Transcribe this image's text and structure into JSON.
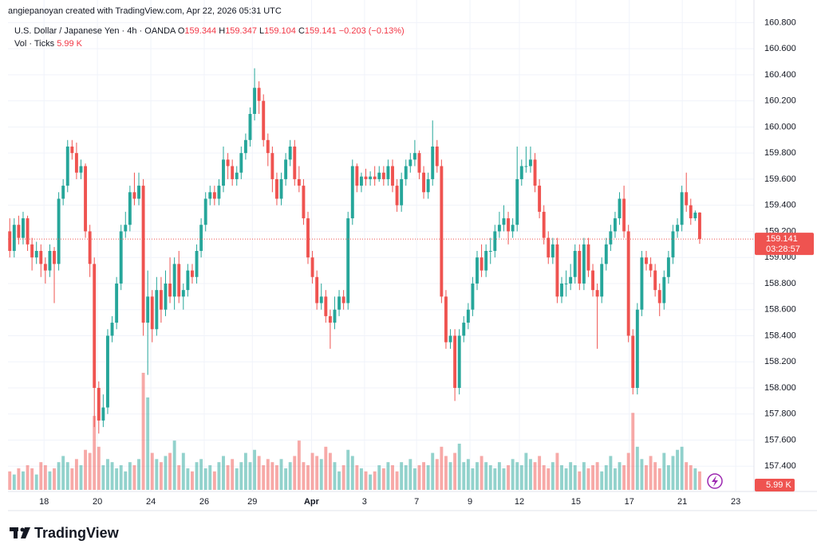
{
  "header": {
    "credit": "angiepanoyan created with TradingView.com, Apr 22, 2026 05:31 UTC",
    "symbol": "U.S. Dollar / Japanese Yen · 4h · OANDA",
    "labels": [
      "O",
      "H",
      "L",
      "C"
    ],
    "change": "−0.203 (−0.13%)",
    "volume_title": "Vol · Ticks",
    "countdown": "03:28:57",
    "logo": "TradingView"
  },
  "chart_data": {
    "type": "candlestick",
    "up_color": "#26a69a",
    "down_color": "#ef5350",
    "grid": true,
    "ylim": [
      157.2,
      160.9
    ],
    "xlim": [
      -0.4,
      167.2
    ],
    "yticks": [
      {
        "value": 157.4,
        "label": "157.400"
      },
      {
        "value": 157.6,
        "label": "157.600"
      },
      {
        "value": 157.8,
        "label": "157.800"
      },
      {
        "value": 158.0,
        "label": "158.000"
      },
      {
        "value": 158.2,
        "label": "158.200"
      },
      {
        "value": 158.4,
        "label": "158.400"
      },
      {
        "value": 158.6,
        "label": "158.600"
      },
      {
        "value": 158.8,
        "label": "158.800"
      },
      {
        "value": 159.0,
        "label": "159.000"
      },
      {
        "value": 159.2,
        "label": "159.200"
      },
      {
        "value": 159.4,
        "label": "159.400"
      },
      {
        "value": 159.6,
        "label": "159.600"
      },
      {
        "value": 159.8,
        "label": "159.800"
      },
      {
        "value": 160.0,
        "label": "160.000"
      },
      {
        "value": 160.2,
        "label": "160.200"
      },
      {
        "value": 160.4,
        "label": "160.400"
      },
      {
        "value": 160.6,
        "label": "160.600"
      },
      {
        "value": 160.8,
        "label": "160.800"
      }
    ],
    "xticks": [
      {
        "value": 7.7,
        "label": "18"
      },
      {
        "value": 19.7,
        "label": "20"
      },
      {
        "value": 31.7,
        "label": "24"
      },
      {
        "value": 43.7,
        "label": "26"
      },
      {
        "value": 54.5,
        "label": "29"
      },
      {
        "value": 67.8,
        "label": "Apr"
      },
      {
        "value": 79.7,
        "label": "3"
      },
      {
        "value": 91.4,
        "label": "7"
      },
      {
        "value": 103.4,
        "label": "9"
      },
      {
        "value": 114.5,
        "label": "12"
      },
      {
        "value": 127.2,
        "label": "15"
      },
      {
        "value": 139.2,
        "label": "17"
      },
      {
        "value": 151.1,
        "label": "21"
      },
      {
        "value": 163.1,
        "label": "23"
      }
    ],
    "volume_label": "5.99 K",
    "candles": [
      [
        159.2,
        159.3,
        159.0,
        159.05,
        6
      ],
      [
        159.05,
        159.3,
        159.0,
        159.25,
        5
      ],
      [
        159.25,
        159.32,
        159.1,
        159.15,
        7
      ],
      [
        159.15,
        159.35,
        159.1,
        159.3,
        6
      ],
      [
        159.3,
        159.32,
        159.05,
        159.1,
        8
      ],
      [
        159.1,
        159.15,
        158.9,
        159.0,
        7
      ],
      [
        159.0,
        159.12,
        158.95,
        159.05,
        5
      ],
      [
        159.05,
        159.1,
        158.85,
        158.95,
        9
      ],
      [
        158.95,
        159.0,
        158.8,
        158.9,
        8
      ],
      [
        158.9,
        159.1,
        158.85,
        159.05,
        6
      ],
      [
        159.05,
        159.08,
        158.65,
        158.95,
        7
      ],
      [
        158.95,
        159.5,
        158.9,
        159.45,
        9
      ],
      [
        159.45,
        159.6,
        159.4,
        159.55,
        11
      ],
      [
        159.55,
        159.9,
        159.5,
        159.85,
        9
      ],
      [
        159.85,
        159.9,
        159.75,
        159.8,
        7
      ],
      [
        159.8,
        159.88,
        159.6,
        159.65,
        10
      ],
      [
        159.65,
        159.75,
        159.6,
        159.7,
        8
      ],
      [
        159.7,
        159.72,
        159.15,
        159.2,
        13
      ],
      [
        159.2,
        159.25,
        158.85,
        158.95,
        12
      ],
      [
        158.95,
        159.0,
        157.7,
        158.0,
        24
      ],
      [
        158.0,
        158.05,
        157.65,
        157.75,
        14
      ],
      [
        157.75,
        157.95,
        157.7,
        157.85,
        8
      ],
      [
        157.85,
        158.45,
        157.8,
        158.4,
        10
      ],
      [
        158.4,
        158.55,
        158.35,
        158.5,
        9
      ],
      [
        158.5,
        158.85,
        158.45,
        158.8,
        7
      ],
      [
        158.8,
        159.25,
        158.75,
        159.2,
        8
      ],
      [
        159.2,
        159.35,
        159.15,
        159.25,
        6
      ],
      [
        159.25,
        159.55,
        159.2,
        159.5,
        9
      ],
      [
        159.5,
        159.65,
        159.4,
        159.45,
        8
      ],
      [
        159.45,
        159.65,
        159.4,
        159.55,
        10
      ],
      [
        159.55,
        159.6,
        158.4,
        158.5,
        38
      ],
      [
        158.5,
        158.9,
        158.1,
        158.7,
        30
      ],
      [
        158.7,
        158.75,
        158.35,
        158.45,
        12
      ],
      [
        158.45,
        158.85,
        158.4,
        158.75,
        10
      ],
      [
        158.75,
        158.85,
        158.5,
        158.6,
        9
      ],
      [
        158.6,
        158.9,
        158.55,
        158.8,
        11
      ],
      [
        158.8,
        159.0,
        158.65,
        158.7,
        12
      ],
      [
        158.7,
        159.0,
        158.6,
        158.95,
        16
      ],
      [
        158.95,
        159.05,
        158.65,
        158.7,
        8
      ],
      [
        158.7,
        158.8,
        158.6,
        158.75,
        12
      ],
      [
        158.75,
        158.95,
        158.7,
        158.9,
        7
      ],
      [
        158.9,
        158.95,
        158.8,
        158.85,
        6
      ],
      [
        158.85,
        159.1,
        158.8,
        159.05,
        9
      ],
      [
        159.05,
        159.3,
        159.0,
        159.25,
        10
      ],
      [
        159.25,
        159.5,
        159.2,
        159.45,
        7
      ],
      [
        159.45,
        159.55,
        159.4,
        159.5,
        8
      ],
      [
        159.5,
        159.55,
        159.4,
        159.45,
        6
      ],
      [
        159.45,
        159.6,
        159.4,
        159.55,
        9
      ],
      [
        159.55,
        159.85,
        159.5,
        159.75,
        11
      ],
      [
        159.75,
        159.8,
        159.6,
        159.7,
        8
      ],
      [
        159.7,
        159.75,
        159.55,
        159.6,
        10
      ],
      [
        159.6,
        159.7,
        159.55,
        159.65,
        7
      ],
      [
        159.65,
        159.85,
        159.6,
        159.8,
        9
      ],
      [
        159.8,
        159.95,
        159.75,
        159.9,
        12
      ],
      [
        159.9,
        160.15,
        159.85,
        160.1,
        9
      ],
      [
        160.1,
        160.45,
        160.05,
        160.3,
        13
      ],
      [
        160.3,
        160.35,
        160.1,
        160.2,
        11
      ],
      [
        160.2,
        160.25,
        159.85,
        159.9,
        8
      ],
      [
        159.9,
        159.95,
        159.7,
        159.8,
        10
      ],
      [
        159.8,
        159.85,
        159.5,
        159.6,
        9
      ],
      [
        159.6,
        159.65,
        159.4,
        159.45,
        8
      ],
      [
        159.45,
        159.65,
        159.4,
        159.6,
        10
      ],
      [
        159.6,
        159.8,
        159.55,
        159.75,
        7
      ],
      [
        159.75,
        159.9,
        159.7,
        159.85,
        9
      ],
      [
        159.85,
        159.9,
        159.55,
        159.6,
        11
      ],
      [
        159.6,
        159.7,
        159.5,
        159.55,
        16
      ],
      [
        159.55,
        159.6,
        159.25,
        159.3,
        9
      ],
      [
        159.3,
        159.35,
        158.95,
        159.0,
        8
      ],
      [
        159.0,
        159.05,
        158.8,
        158.85,
        12
      ],
      [
        158.85,
        158.9,
        158.6,
        158.65,
        11
      ],
      [
        158.65,
        158.8,
        158.6,
        158.7,
        10
      ],
      [
        158.7,
        158.75,
        158.5,
        158.55,
        14
      ],
      [
        158.55,
        158.6,
        158.3,
        158.5,
        12
      ],
      [
        158.5,
        158.7,
        158.45,
        158.6,
        9
      ],
      [
        158.6,
        158.75,
        158.55,
        158.7,
        6
      ],
      [
        158.7,
        158.75,
        158.6,
        158.65,
        8
      ],
      [
        158.65,
        159.35,
        158.6,
        159.3,
        13
      ],
      [
        159.3,
        159.75,
        159.25,
        159.7,
        11
      ],
      [
        159.7,
        159.72,
        159.5,
        159.55,
        8
      ],
      [
        159.55,
        159.65,
        159.5,
        159.62,
        7
      ],
      [
        159.62,
        159.68,
        159.55,
        159.6,
        6
      ],
      [
        159.6,
        159.66,
        159.55,
        159.62,
        5
      ],
      [
        159.62,
        159.7,
        159.55,
        159.6,
        6
      ],
      [
        159.6,
        159.7,
        159.58,
        159.65,
        8
      ],
      [
        159.65,
        159.7,
        159.55,
        159.6,
        7
      ],
      [
        159.6,
        159.75,
        159.55,
        159.7,
        9
      ],
      [
        159.7,
        159.75,
        159.5,
        159.55,
        8
      ],
      [
        159.55,
        159.6,
        159.35,
        159.4,
        6
      ],
      [
        159.4,
        159.65,
        159.35,
        159.6,
        9
      ],
      [
        159.6,
        159.75,
        159.55,
        159.7,
        8
      ],
      [
        159.7,
        159.8,
        159.65,
        159.75,
        10
      ],
      [
        159.75,
        159.9,
        159.7,
        159.8,
        7
      ],
      [
        159.8,
        159.82,
        159.6,
        159.65,
        8
      ],
      [
        159.65,
        159.7,
        159.45,
        159.5,
        9
      ],
      [
        159.5,
        159.65,
        159.45,
        159.6,
        8
      ],
      [
        159.6,
        160.05,
        159.55,
        159.85,
        12
      ],
      [
        159.85,
        159.9,
        159.65,
        159.7,
        10
      ],
      [
        159.7,
        159.75,
        158.65,
        158.7,
        14
      ],
      [
        158.7,
        158.75,
        158.3,
        158.35,
        11
      ],
      [
        158.35,
        158.45,
        158.3,
        158.4,
        9
      ],
      [
        158.4,
        158.45,
        157.9,
        158.0,
        12
      ],
      [
        158.0,
        158.45,
        157.95,
        158.4,
        15
      ],
      [
        158.4,
        158.55,
        158.35,
        158.5,
        9
      ],
      [
        158.5,
        158.65,
        158.45,
        158.6,
        10
      ],
      [
        158.6,
        158.85,
        158.55,
        158.8,
        7
      ],
      [
        158.8,
        159.05,
        158.75,
        159.0,
        9
      ],
      [
        159.0,
        159.1,
        158.85,
        158.9,
        11
      ],
      [
        158.9,
        159.1,
        158.85,
        159.05,
        9
      ],
      [
        159.05,
        159.15,
        158.95,
        159.05,
        8
      ],
      [
        159.05,
        159.25,
        159.0,
        159.2,
        7
      ],
      [
        159.2,
        159.35,
        159.15,
        159.25,
        9
      ],
      [
        159.25,
        159.4,
        159.2,
        159.3,
        7
      ],
      [
        159.3,
        159.35,
        159.1,
        159.2,
        8
      ],
      [
        159.2,
        159.3,
        159.15,
        159.25,
        10
      ],
      [
        159.25,
        159.85,
        159.2,
        159.6,
        9
      ],
      [
        159.6,
        159.75,
        159.55,
        159.7,
        8
      ],
      [
        159.7,
        159.85,
        159.65,
        159.7,
        12
      ],
      [
        159.7,
        159.85,
        159.65,
        159.75,
        10
      ],
      [
        159.75,
        159.8,
        159.5,
        159.55,
        9
      ],
      [
        159.55,
        159.6,
        159.3,
        159.35,
        11
      ],
      [
        159.35,
        159.4,
        159.1,
        159.15,
        8
      ],
      [
        159.15,
        159.2,
        158.95,
        159.0,
        7
      ],
      [
        159.0,
        159.15,
        158.95,
        159.1,
        9
      ],
      [
        159.1,
        159.15,
        158.65,
        158.7,
        12
      ],
      [
        158.7,
        158.85,
        158.65,
        158.8,
        8
      ],
      [
        158.8,
        158.9,
        158.7,
        158.8,
        7
      ],
      [
        158.8,
        158.95,
        158.75,
        158.85,
        9
      ],
      [
        158.85,
        159.1,
        158.8,
        159.05,
        8
      ],
      [
        159.05,
        159.1,
        158.75,
        158.8,
        6
      ],
      [
        158.8,
        159.15,
        158.75,
        159.1,
        9
      ],
      [
        159.1,
        159.15,
        158.85,
        158.9,
        7
      ],
      [
        158.9,
        158.95,
        158.7,
        158.75,
        8
      ],
      [
        158.75,
        158.8,
        158.3,
        158.7,
        9
      ],
      [
        158.7,
        159.0,
        158.65,
        158.95,
        6
      ],
      [
        158.95,
        159.15,
        158.9,
        159.1,
        8
      ],
      [
        159.1,
        159.25,
        159.05,
        159.2,
        11
      ],
      [
        159.2,
        159.35,
        159.15,
        159.3,
        7
      ],
      [
        159.3,
        159.5,
        159.25,
        159.45,
        9
      ],
      [
        159.45,
        159.55,
        159.15,
        159.2,
        8
      ],
      [
        159.2,
        159.25,
        158.35,
        158.4,
        12
      ],
      [
        158.4,
        158.45,
        157.95,
        158.0,
        25
      ],
      [
        158.0,
        158.65,
        157.95,
        158.6,
        14
      ],
      [
        158.6,
        159.05,
        158.55,
        159.0,
        10
      ],
      [
        159.0,
        159.05,
        158.9,
        158.95,
        8
      ],
      [
        158.95,
        159.0,
        158.85,
        158.9,
        11
      ],
      [
        158.9,
        158.95,
        158.7,
        158.75,
        9
      ],
      [
        158.75,
        158.8,
        158.55,
        158.65,
        7
      ],
      [
        158.65,
        158.9,
        158.6,
        158.85,
        12
      ],
      [
        158.85,
        159.05,
        158.8,
        159.0,
        8
      ],
      [
        159.0,
        159.25,
        158.95,
        159.2,
        11
      ],
      [
        159.2,
        159.3,
        159.15,
        159.25,
        13
      ],
      [
        159.25,
        159.55,
        159.2,
        159.5,
        14
      ],
      [
        159.5,
        159.65,
        159.35,
        159.4,
        9
      ],
      [
        159.4,
        159.45,
        159.25,
        159.3,
        8
      ],
      [
        159.3,
        159.36,
        159.28,
        159.344,
        7
      ],
      [
        159.344,
        159.347,
        159.104,
        159.141,
        5.99
      ]
    ]
  }
}
